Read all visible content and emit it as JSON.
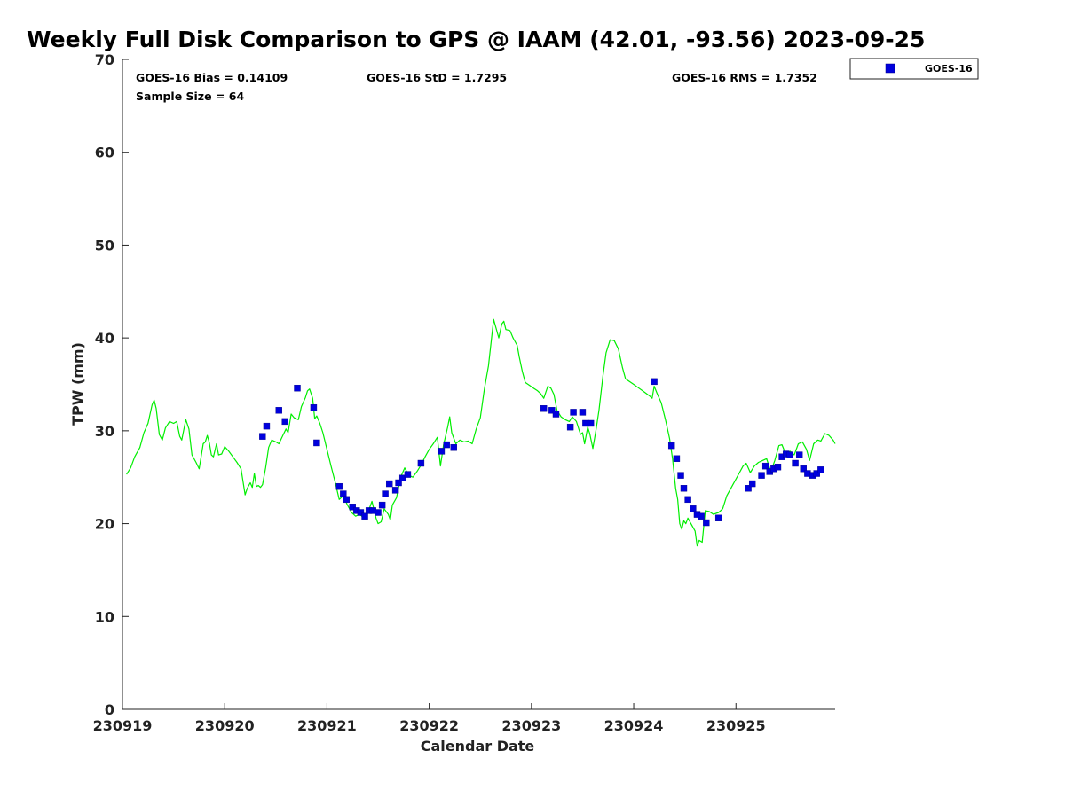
{
  "chart_data": {
    "type": "scatter",
    "title": "Weekly Full Disk Comparison to GPS @ IAAM (42.01, -93.56) 2023-09-25",
    "xlabel": "Calendar Date",
    "ylabel": "TPW (mm)",
    "xlim": [
      0,
      6.97
    ],
    "ylim": [
      0,
      70
    ],
    "x_ticks": [
      {
        "value": 0,
        "label": "230919"
      },
      {
        "value": 1,
        "label": "230920"
      },
      {
        "value": 2,
        "label": "230921"
      },
      {
        "value": 3,
        "label": "230922"
      },
      {
        "value": 4,
        "label": "230923"
      },
      {
        "value": 5,
        "label": "230924"
      },
      {
        "value": 6,
        "label": "230925"
      }
    ],
    "y_ticks": [
      0,
      10,
      20,
      30,
      40,
      50,
      60,
      70
    ],
    "grid": false,
    "legend_position": "top-right-outside",
    "stats": {
      "bias": "GOES-16 Bias = 0.14109",
      "std": "GOES-16 StD = 1.7295",
      "rms": "GOES-16 RMS = 1.7352",
      "sample": "Sample Size = 64"
    },
    "series": [
      {
        "name": "GOES-16",
        "kind": "scatter",
        "color": "#0000dd",
        "points": [
          [
            1.37,
            29.4
          ],
          [
            1.41,
            30.5
          ],
          [
            1.53,
            32.2
          ],
          [
            1.59,
            31.0
          ],
          [
            1.71,
            34.6
          ],
          [
            1.87,
            32.5
          ],
          [
            1.9,
            28.7
          ],
          [
            2.12,
            24.0
          ],
          [
            2.16,
            23.2
          ],
          [
            2.19,
            22.6
          ],
          [
            2.25,
            21.8
          ],
          [
            2.29,
            21.4
          ],
          [
            2.33,
            21.2
          ],
          [
            2.37,
            20.8
          ],
          [
            2.41,
            21.4
          ],
          [
            2.45,
            21.4
          ],
          [
            2.5,
            21.2
          ],
          [
            2.54,
            22.0
          ],
          [
            2.57,
            23.2
          ],
          [
            2.61,
            24.3
          ],
          [
            2.67,
            23.6
          ],
          [
            2.7,
            24.4
          ],
          [
            2.74,
            24.9
          ],
          [
            2.79,
            25.3
          ],
          [
            2.92,
            26.5
          ],
          [
            3.12,
            27.8
          ],
          [
            3.17,
            28.5
          ],
          [
            3.24,
            28.2
          ],
          [
            4.12,
            32.4
          ],
          [
            4.2,
            32.2
          ],
          [
            4.24,
            31.8
          ],
          [
            4.38,
            30.4
          ],
          [
            4.41,
            32.0
          ],
          [
            4.5,
            32.0
          ],
          [
            4.53,
            30.8
          ],
          [
            4.58,
            30.8
          ],
          [
            5.2,
            35.3
          ],
          [
            5.37,
            28.4
          ],
          [
            5.42,
            27.0
          ],
          [
            5.46,
            25.2
          ],
          [
            5.49,
            23.8
          ],
          [
            5.53,
            22.6
          ],
          [
            5.58,
            21.6
          ],
          [
            5.62,
            21.0
          ],
          [
            5.66,
            20.8
          ],
          [
            5.71,
            20.1
          ],
          [
            5.83,
            20.6
          ],
          [
            6.12,
            23.8
          ],
          [
            6.16,
            24.3
          ],
          [
            6.25,
            25.2
          ],
          [
            6.29,
            26.2
          ],
          [
            6.33,
            25.6
          ],
          [
            6.37,
            25.9
          ],
          [
            6.41,
            26.1
          ],
          [
            6.45,
            27.2
          ],
          [
            6.49,
            27.5
          ],
          [
            6.53,
            27.4
          ],
          [
            6.58,
            26.5
          ],
          [
            6.62,
            27.4
          ],
          [
            6.66,
            25.9
          ],
          [
            6.7,
            25.4
          ],
          [
            6.75,
            25.2
          ],
          [
            6.79,
            25.4
          ],
          [
            6.83,
            25.8
          ]
        ]
      },
      {
        "kind": "line",
        "color": "#00ee00",
        "points": [
          [
            0.04,
            25.3
          ],
          [
            0.08,
            26.0
          ],
          [
            0.12,
            27.2
          ],
          [
            0.17,
            28.2
          ],
          [
            0.21,
            29.8
          ],
          [
            0.25,
            30.8
          ],
          [
            0.29,
            32.8
          ],
          [
            0.31,
            33.3
          ],
          [
            0.33,
            32.4
          ],
          [
            0.36,
            29.6
          ],
          [
            0.39,
            29.0
          ],
          [
            0.42,
            30.3
          ],
          [
            0.46,
            31.0
          ],
          [
            0.5,
            30.8
          ],
          [
            0.53,
            31.0
          ],
          [
            0.56,
            29.4
          ],
          [
            0.58,
            29.0
          ],
          [
            0.62,
            31.2
          ],
          [
            0.65,
            30.2
          ],
          [
            0.68,
            27.4
          ],
          [
            0.72,
            26.6
          ],
          [
            0.75,
            25.9
          ],
          [
            0.79,
            28.6
          ],
          [
            0.81,
            28.8
          ],
          [
            0.83,
            29.5
          ],
          [
            0.85,
            28.7
          ],
          [
            0.87,
            27.4
          ],
          [
            0.89,
            27.2
          ],
          [
            0.92,
            28.6
          ],
          [
            0.94,
            27.4
          ],
          [
            0.97,
            27.5
          ],
          [
            1.0,
            28.3
          ],
          [
            1.04,
            27.8
          ],
          [
            1.08,
            27.2
          ],
          [
            1.12,
            26.6
          ],
          [
            1.16,
            25.9
          ],
          [
            1.2,
            23.1
          ],
          [
            1.22,
            23.8
          ],
          [
            1.25,
            24.4
          ],
          [
            1.27,
            23.9
          ],
          [
            1.29,
            25.4
          ],
          [
            1.31,
            24.0
          ],
          [
            1.33,
            24.1
          ],
          [
            1.35,
            23.9
          ],
          [
            1.37,
            24.2
          ],
          [
            1.4,
            26.0
          ],
          [
            1.43,
            28.2
          ],
          [
            1.46,
            29.0
          ],
          [
            1.5,
            28.8
          ],
          [
            1.53,
            28.6
          ],
          [
            1.56,
            29.3
          ],
          [
            1.6,
            30.2
          ],
          [
            1.62,
            29.8
          ],
          [
            1.65,
            31.8
          ],
          [
            1.68,
            31.4
          ],
          [
            1.72,
            31.2
          ],
          [
            1.75,
            32.6
          ],
          [
            1.79,
            33.6
          ],
          [
            1.81,
            34.3
          ],
          [
            1.83,
            34.5
          ],
          [
            1.86,
            33.5
          ],
          [
            1.88,
            31.3
          ],
          [
            1.9,
            31.6
          ],
          [
            1.93,
            30.8
          ],
          [
            1.96,
            29.8
          ],
          [
            2.0,
            28.0
          ],
          [
            2.04,
            26.2
          ],
          [
            2.08,
            24.5
          ],
          [
            2.12,
            22.6
          ],
          [
            2.16,
            23.0
          ],
          [
            2.2,
            22.0
          ],
          [
            2.24,
            21.2
          ],
          [
            2.28,
            20.8
          ],
          [
            2.32,
            21.0
          ],
          [
            2.36,
            20.6
          ],
          [
            2.4,
            21.2
          ],
          [
            2.44,
            22.4
          ],
          [
            2.48,
            20.6
          ],
          [
            2.5,
            20.0
          ],
          [
            2.53,
            20.2
          ],
          [
            2.56,
            21.6
          ],
          [
            2.6,
            21.0
          ],
          [
            2.62,
            20.4
          ],
          [
            2.64,
            22.0
          ],
          [
            2.68,
            22.8
          ],
          [
            2.72,
            25.0
          ],
          [
            2.76,
            26.0
          ],
          [
            2.8,
            25.2
          ],
          [
            2.84,
            25.0
          ],
          [
            2.88,
            25.6
          ],
          [
            2.92,
            26.3
          ],
          [
            2.96,
            27.2
          ],
          [
            3.0,
            28.0
          ],
          [
            3.04,
            28.6
          ],
          [
            3.08,
            29.3
          ],
          [
            3.11,
            26.2
          ],
          [
            3.14,
            28.5
          ],
          [
            3.18,
            30.4
          ],
          [
            3.2,
            31.5
          ],
          [
            3.22,
            29.8
          ],
          [
            3.26,
            28.6
          ],
          [
            3.3,
            29.0
          ],
          [
            3.34,
            28.8
          ],
          [
            3.38,
            28.9
          ],
          [
            3.42,
            28.6
          ],
          [
            3.46,
            30.2
          ],
          [
            3.5,
            31.4
          ],
          [
            3.54,
            34.5
          ],
          [
            3.58,
            37.0
          ],
          [
            3.61,
            40.0
          ],
          [
            3.63,
            42.0
          ],
          [
            3.66,
            40.8
          ],
          [
            3.68,
            40.0
          ],
          [
            3.71,
            41.5
          ],
          [
            3.73,
            41.8
          ],
          [
            3.75,
            40.9
          ],
          [
            3.79,
            40.8
          ],
          [
            3.82,
            40.0
          ],
          [
            3.86,
            39.2
          ],
          [
            3.88,
            38.0
          ],
          [
            3.91,
            36.4
          ],
          [
            3.94,
            35.2
          ],
          [
            3.98,
            34.9
          ],
          [
            4.02,
            34.6
          ],
          [
            4.06,
            34.3
          ],
          [
            4.09,
            34.0
          ],
          [
            4.12,
            33.5
          ],
          [
            4.16,
            34.8
          ],
          [
            4.19,
            34.6
          ],
          [
            4.22,
            33.9
          ],
          [
            4.25,
            32.2
          ],
          [
            4.29,
            31.5
          ],
          [
            4.33,
            31.2
          ],
          [
            4.37,
            31.0
          ],
          [
            4.4,
            31.5
          ],
          [
            4.44,
            31.0
          ],
          [
            4.48,
            29.6
          ],
          [
            4.5,
            29.8
          ],
          [
            4.52,
            28.6
          ],
          [
            4.55,
            30.4
          ],
          [
            4.57,
            29.7
          ],
          [
            4.6,
            28.1
          ],
          [
            4.63,
            30.0
          ],
          [
            4.66,
            32.2
          ],
          [
            4.7,
            36.0
          ],
          [
            4.73,
            38.4
          ],
          [
            4.77,
            39.8
          ],
          [
            4.81,
            39.7
          ],
          [
            4.85,
            38.8
          ],
          [
            4.89,
            36.8
          ],
          [
            4.92,
            35.6
          ],
          [
            4.96,
            35.3
          ],
          [
            5.0,
            35.0
          ],
          [
            5.05,
            34.6
          ],
          [
            5.1,
            34.2
          ],
          [
            5.15,
            33.8
          ],
          [
            5.18,
            33.5
          ],
          [
            5.2,
            34.8
          ],
          [
            5.23,
            34.0
          ],
          [
            5.27,
            33.0
          ],
          [
            5.31,
            31.2
          ],
          [
            5.35,
            29.2
          ],
          [
            5.38,
            27.0
          ],
          [
            5.41,
            23.8
          ],
          [
            5.43,
            22.6
          ],
          [
            5.45,
            20.0
          ],
          [
            5.47,
            19.4
          ],
          [
            5.49,
            20.3
          ],
          [
            5.51,
            20.0
          ],
          [
            5.53,
            20.6
          ],
          [
            5.55,
            20.2
          ],
          [
            5.57,
            19.8
          ],
          [
            5.6,
            19.2
          ],
          [
            5.62,
            17.6
          ],
          [
            5.64,
            18.2
          ],
          [
            5.67,
            18.0
          ],
          [
            5.7,
            21.4
          ],
          [
            5.74,
            21.3
          ],
          [
            5.78,
            21.0
          ],
          [
            5.83,
            21.2
          ],
          [
            5.87,
            21.6
          ],
          [
            5.91,
            23.0
          ],
          [
            5.95,
            23.8
          ],
          [
            5.99,
            24.6
          ],
          [
            6.03,
            25.4
          ],
          [
            6.07,
            26.2
          ],
          [
            6.1,
            26.5
          ],
          [
            6.14,
            25.5
          ],
          [
            6.18,
            26.2
          ],
          [
            6.22,
            26.6
          ],
          [
            6.26,
            26.8
          ],
          [
            6.3,
            27.0
          ],
          [
            6.34,
            25.6
          ],
          [
            6.38,
            26.8
          ],
          [
            6.42,
            28.4
          ],
          [
            6.45,
            28.5
          ],
          [
            6.49,
            27.4
          ],
          [
            6.53,
            27.8
          ],
          [
            6.57,
            27.4
          ],
          [
            6.61,
            28.6
          ],
          [
            6.65,
            28.8
          ],
          [
            6.69,
            28.0
          ],
          [
            6.72,
            26.8
          ],
          [
            6.76,
            28.6
          ],
          [
            6.8,
            29.0
          ],
          [
            6.83,
            28.9
          ],
          [
            6.87,
            29.7
          ],
          [
            6.91,
            29.5
          ],
          [
            6.95,
            29.0
          ],
          [
            6.97,
            28.6
          ]
        ]
      }
    ]
  }
}
